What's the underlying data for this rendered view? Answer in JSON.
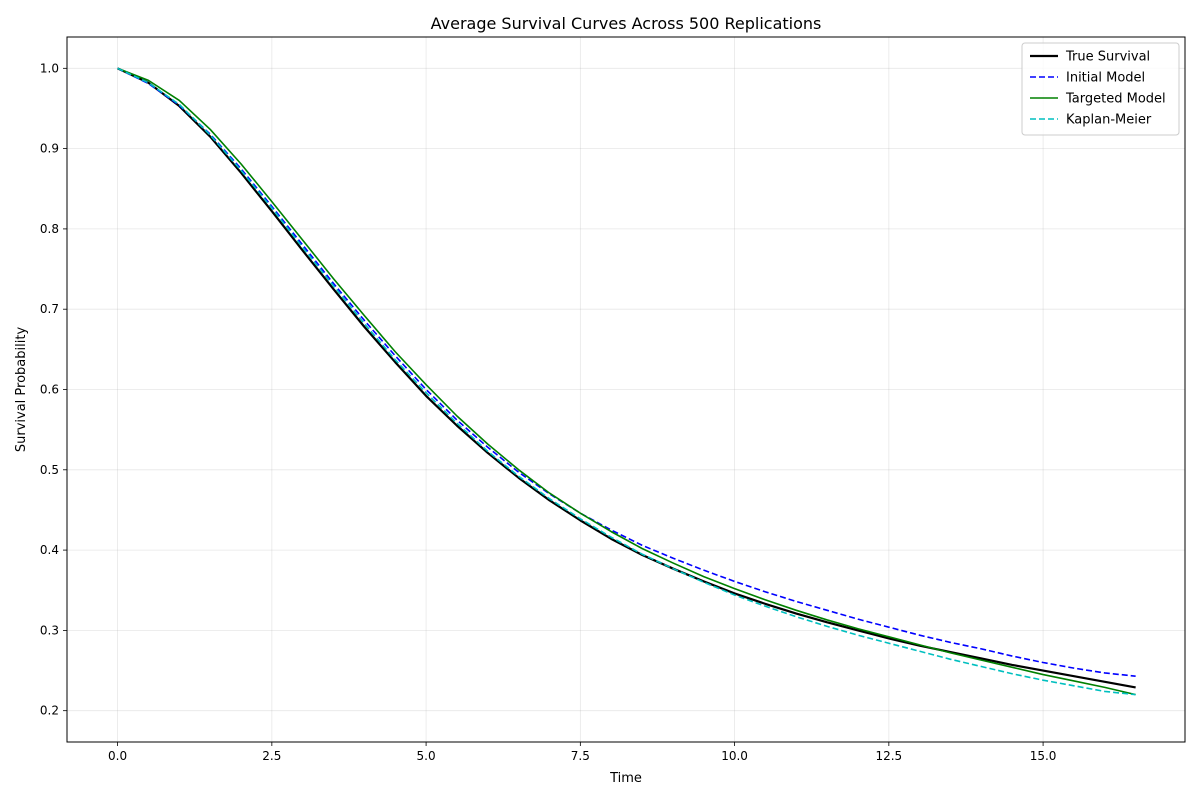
{
  "chart_data": {
    "type": "line",
    "title": "Average Survival Curves Across 500 Replications",
    "xlabel": "Time",
    "ylabel": "Survival Probability",
    "xlim": [
      -0.82,
      17.3
    ],
    "ylim": [
      0.161,
      1.039
    ],
    "xticks": [
      "0.0",
      "2.5",
      "5.0",
      "7.5",
      "10.0",
      "12.5",
      "15.0"
    ],
    "yticks": [
      "0.2",
      "0.3",
      "0.4",
      "0.5",
      "0.6",
      "0.7",
      "0.8",
      "0.9",
      "1.0"
    ],
    "grid": true,
    "legend_position": "top-right",
    "series": [
      {
        "name": "True Survival",
        "color": "#000000",
        "style": "solid",
        "width": 2.2,
        "x": [
          0,
          0.5,
          1,
          1.5,
          2,
          2.5,
          3,
          3.5,
          4,
          4.5,
          5,
          5.5,
          6,
          6.5,
          7,
          7.5,
          8,
          8.5,
          9,
          9.5,
          10,
          10.5,
          11,
          11.5,
          12,
          12.5,
          13,
          13.5,
          14,
          14.5,
          15,
          15.5,
          16,
          16.5
        ],
        "y": [
          1.0,
          0.982,
          0.953,
          0.915,
          0.87,
          0.822,
          0.773,
          0.725,
          0.678,
          0.634,
          0.592,
          0.555,
          0.521,
          0.49,
          0.462,
          0.437,
          0.414,
          0.394,
          0.377,
          0.361,
          0.346,
          0.333,
          0.321,
          0.31,
          0.3,
          0.29,
          0.281,
          0.273,
          0.265,
          0.257,
          0.25,
          0.243,
          0.236,
          0.229
        ]
      },
      {
        "name": "Initial Model",
        "color": "#0000ff",
        "style": "dashed",
        "width": 1.6,
        "x": [
          0,
          0.5,
          1,
          1.5,
          2,
          2.5,
          3,
          3.5,
          4,
          4.5,
          5,
          5.5,
          6,
          6.5,
          7,
          7.5,
          8,
          8.5,
          9,
          9.5,
          10,
          10.5,
          11,
          11.5,
          12,
          12.5,
          13,
          13.5,
          14,
          14.5,
          15,
          15.5,
          16,
          16.5
        ],
        "y": [
          1.0,
          0.981,
          0.954,
          0.918,
          0.875,
          0.828,
          0.78,
          0.732,
          0.686,
          0.642,
          0.6,
          0.562,
          0.528,
          0.497,
          0.47,
          0.446,
          0.425,
          0.406,
          0.39,
          0.375,
          0.361,
          0.348,
          0.336,
          0.325,
          0.314,
          0.304,
          0.294,
          0.285,
          0.277,
          0.268,
          0.26,
          0.253,
          0.247,
          0.243
        ]
      },
      {
        "name": "Targeted Model",
        "color": "#008000",
        "style": "solid",
        "width": 1.6,
        "x": [
          0,
          0.5,
          1,
          1.5,
          2,
          2.5,
          3,
          3.5,
          4,
          4.5,
          5,
          5.5,
          6,
          6.5,
          7,
          7.5,
          8,
          8.5,
          9,
          9.5,
          10,
          10.5,
          11,
          11.5,
          12,
          12.5,
          13,
          13.5,
          14,
          14.5,
          15,
          15.5,
          16,
          16.5
        ],
        "y": [
          1.0,
          0.985,
          0.96,
          0.924,
          0.881,
          0.834,
          0.786,
          0.738,
          0.692,
          0.647,
          0.606,
          0.567,
          0.532,
          0.5,
          0.471,
          0.446,
          0.423,
          0.402,
          0.384,
          0.367,
          0.352,
          0.338,
          0.325,
          0.313,
          0.302,
          0.292,
          0.282,
          0.272,
          0.263,
          0.254,
          0.245,
          0.237,
          0.229,
          0.22
        ]
      },
      {
        "name": "Kaplan-Meier",
        "color": "#00bfbf",
        "style": "dashed",
        "width": 1.6,
        "x": [
          0,
          0.5,
          1,
          1.5,
          2,
          2.5,
          3,
          3.5,
          4,
          4.5,
          5,
          5.5,
          6,
          6.5,
          7,
          7.5,
          8,
          8.5,
          9,
          9.5,
          10,
          10.5,
          11,
          11.5,
          12,
          12.5,
          13,
          13.5,
          14,
          14.5,
          15,
          15.5,
          16,
          16.5
        ],
        "y": [
          1.0,
          0.982,
          0.955,
          0.917,
          0.873,
          0.826,
          0.777,
          0.729,
          0.682,
          0.637,
          0.596,
          0.558,
          0.523,
          0.492,
          0.464,
          0.439,
          0.416,
          0.395,
          0.377,
          0.36,
          0.344,
          0.33,
          0.317,
          0.305,
          0.294,
          0.284,
          0.274,
          0.264,
          0.255,
          0.246,
          0.238,
          0.231,
          0.224,
          0.22
        ]
      }
    ]
  }
}
